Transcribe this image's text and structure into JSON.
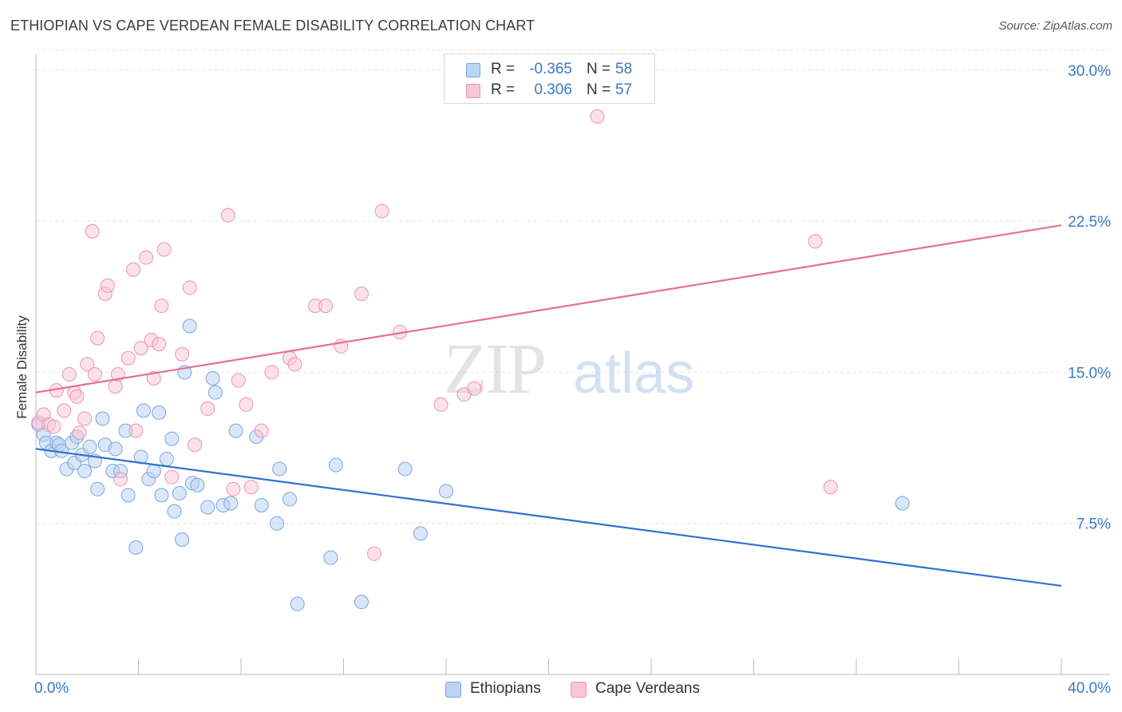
{
  "header": {
    "title": "ETHIOPIAN VS CAPE VERDEAN FEMALE DISABILITY CORRELATION CHART",
    "source": "Source: ZipAtlas.com"
  },
  "watermark": {
    "zip": "ZIP",
    "atlas": "atlas"
  },
  "legend_top": {
    "rows": [
      {
        "r_label": "R =",
        "r_value": "-0.365",
        "n_label": "N =",
        "n_value": "58"
      },
      {
        "r_label": "R =",
        "r_value": "0.306",
        "n_label": "N =",
        "n_value": "57"
      }
    ]
  },
  "legend_bottom": {
    "items": [
      {
        "label": "Ethiopians"
      },
      {
        "label": "Cape Verdeans"
      }
    ]
  },
  "colors": {
    "ethiopians_fill": "#bcd4f4",
    "ethiopians_stroke": "#7aa6de",
    "ethiopians_line": "#2f72cc",
    "cape_fill": "#f8c6d6",
    "cape_stroke": "#ec93b3",
    "cape_line": "#e66e98",
    "tick_label": "#3a78c9",
    "grid": "#e2e2e2"
  },
  "chart_data": {
    "type": "scatter",
    "title": "ETHIOPIAN VS CAPE VERDEAN FEMALE DISABILITY CORRELATION CHART",
    "xlabel": "",
    "ylabel": "Female Disability",
    "xlim": [
      0,
      40
    ],
    "ylim": [
      0,
      31.5
    ],
    "x_tick_labels": [
      "0.0%",
      "40.0%"
    ],
    "y_ticks": [
      7.5,
      15.0,
      22.5,
      30.0
    ],
    "y_tick_labels": [
      "7.5%",
      "15.0%",
      "22.5%",
      "30.0%"
    ],
    "grid": true,
    "legend_position": "bottom",
    "series": [
      {
        "name": "Ethiopians",
        "r": -0.365,
        "n": 58,
        "trend": {
          "x": [
            0,
            40
          ],
          "y": [
            11.2,
            4.4
          ]
        },
        "points": [
          [
            0.1,
            12.4
          ],
          [
            0.3,
            11.9
          ],
          [
            0.4,
            11.5
          ],
          [
            0.6,
            11.1
          ],
          [
            0.8,
            11.5
          ],
          [
            0.9,
            11.4
          ],
          [
            1.0,
            11.1
          ],
          [
            1.2,
            10.2
          ],
          [
            1.4,
            11.5
          ],
          [
            1.5,
            10.5
          ],
          [
            1.6,
            11.8
          ],
          [
            1.8,
            10.9
          ],
          [
            1.9,
            10.1
          ],
          [
            2.1,
            11.3
          ],
          [
            2.3,
            10.6
          ],
          [
            2.4,
            9.2
          ],
          [
            2.6,
            12.7
          ],
          [
            2.7,
            11.4
          ],
          [
            3.0,
            10.1
          ],
          [
            3.1,
            11.2
          ],
          [
            3.3,
            10.1
          ],
          [
            3.5,
            12.1
          ],
          [
            3.6,
            8.9
          ],
          [
            3.9,
            6.3
          ],
          [
            4.1,
            10.8
          ],
          [
            4.2,
            13.1
          ],
          [
            4.4,
            9.7
          ],
          [
            4.6,
            10.1
          ],
          [
            4.8,
            13.0
          ],
          [
            4.9,
            8.9
          ],
          [
            5.1,
            10.7
          ],
          [
            5.3,
            11.7
          ],
          [
            5.4,
            8.1
          ],
          [
            5.6,
            9.0
          ],
          [
            5.7,
            6.7
          ],
          [
            5.8,
            15.0
          ],
          [
            6.0,
            17.3
          ],
          [
            6.1,
            9.5
          ],
          [
            6.3,
            9.4
          ],
          [
            6.7,
            8.3
          ],
          [
            6.9,
            14.7
          ],
          [
            7.0,
            14.0
          ],
          [
            7.3,
            8.4
          ],
          [
            7.6,
            8.5
          ],
          [
            7.8,
            12.1
          ],
          [
            8.6,
            11.8
          ],
          [
            8.8,
            8.4
          ],
          [
            9.4,
            7.5
          ],
          [
            9.5,
            10.2
          ],
          [
            9.9,
            8.7
          ],
          [
            10.2,
            3.5
          ],
          [
            11.5,
            5.8
          ],
          [
            11.7,
            10.4
          ],
          [
            12.7,
            3.6
          ],
          [
            14.4,
            10.2
          ],
          [
            15.0,
            7.0
          ],
          [
            16.0,
            9.1
          ],
          [
            33.8,
            8.5
          ]
        ]
      },
      {
        "name": "Cape Verdeans",
        "r": 0.306,
        "n": 57,
        "trend": {
          "x": [
            0,
            40
          ],
          "y": [
            14.0,
            22.3
          ]
        },
        "points": [
          [
            0.1,
            12.5
          ],
          [
            0.3,
            12.9
          ],
          [
            0.5,
            12.4
          ],
          [
            0.7,
            12.3
          ],
          [
            0.8,
            14.1
          ],
          [
            1.1,
            13.1
          ],
          [
            1.3,
            14.9
          ],
          [
            1.5,
            14.0
          ],
          [
            1.6,
            13.8
          ],
          [
            1.7,
            12.0
          ],
          [
            1.9,
            12.7
          ],
          [
            2.0,
            15.4
          ],
          [
            2.2,
            22.0
          ],
          [
            2.3,
            14.9
          ],
          [
            2.4,
            16.7
          ],
          [
            2.7,
            18.9
          ],
          [
            2.8,
            19.3
          ],
          [
            3.1,
            14.3
          ],
          [
            3.2,
            14.9
          ],
          [
            3.3,
            9.7
          ],
          [
            3.6,
            15.7
          ],
          [
            3.8,
            20.1
          ],
          [
            3.9,
            12.1
          ],
          [
            4.1,
            16.2
          ],
          [
            4.3,
            20.7
          ],
          [
            4.5,
            16.6
          ],
          [
            4.6,
            14.7
          ],
          [
            4.8,
            16.4
          ],
          [
            4.9,
            18.3
          ],
          [
            5.0,
            21.1
          ],
          [
            5.3,
            9.8
          ],
          [
            5.7,
            15.9
          ],
          [
            6.0,
            19.2
          ],
          [
            6.2,
            11.4
          ],
          [
            6.7,
            13.2
          ],
          [
            7.5,
            22.8
          ],
          [
            7.7,
            9.2
          ],
          [
            7.9,
            14.6
          ],
          [
            8.2,
            13.4
          ],
          [
            8.4,
            9.3
          ],
          [
            8.8,
            12.1
          ],
          [
            9.2,
            15.0
          ],
          [
            9.9,
            15.7
          ],
          [
            10.1,
            15.4
          ],
          [
            10.9,
            18.3
          ],
          [
            11.3,
            18.3
          ],
          [
            11.9,
            16.3
          ],
          [
            12.7,
            18.9
          ],
          [
            13.2,
            6.0
          ],
          [
            13.5,
            23.0
          ],
          [
            14.2,
            17.0
          ],
          [
            15.8,
            13.4
          ],
          [
            16.7,
            13.9
          ],
          [
            17.1,
            14.2
          ],
          [
            21.9,
            27.7
          ],
          [
            30.4,
            21.5
          ],
          [
            31.0,
            9.3
          ]
        ]
      }
    ]
  }
}
